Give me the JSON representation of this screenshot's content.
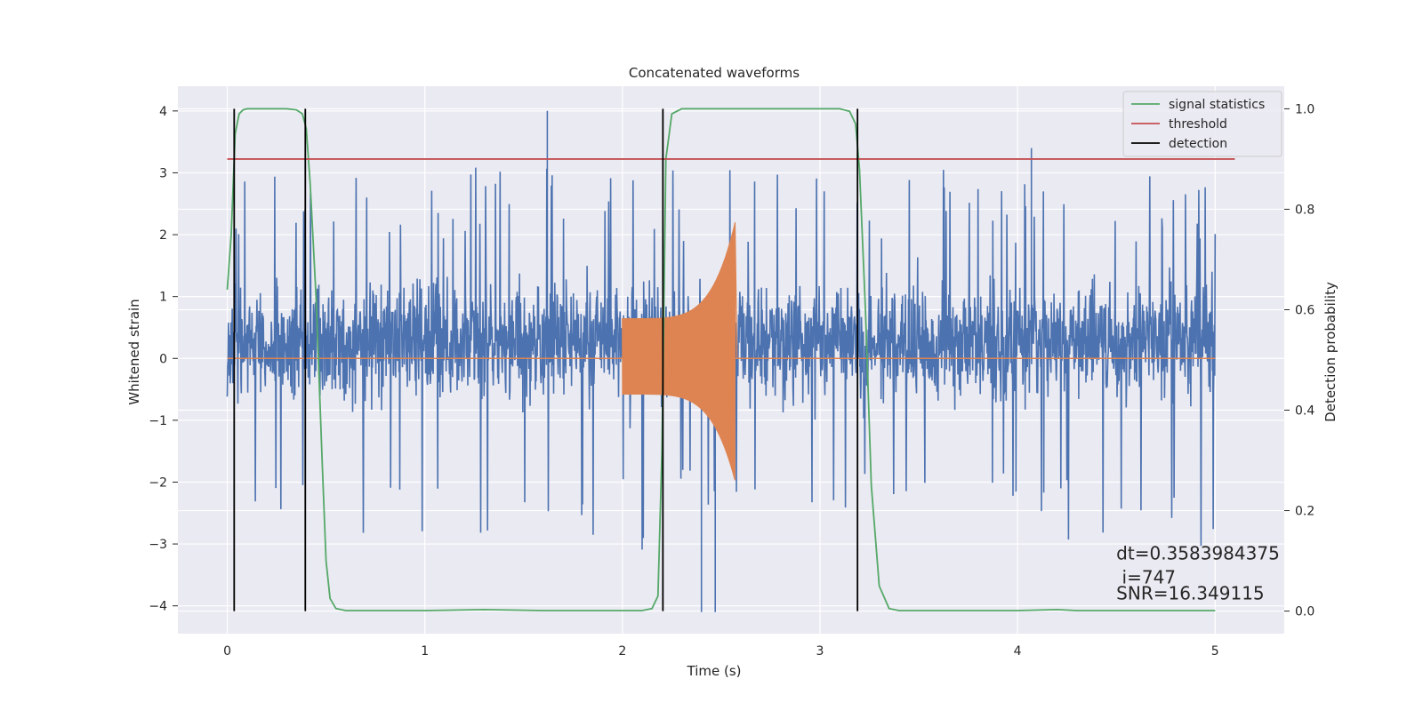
{
  "chart_data": {
    "type": "line",
    "title": "Concatenated waveforms",
    "xlabel": "Time (s)",
    "ylabel": "Whitened strain",
    "y2label": "Detection probability",
    "xlim": [
      -0.25,
      5.35
    ],
    "ylim": [
      -4.45,
      4.4
    ],
    "y2lim": [
      -0.045,
      1.045
    ],
    "xticks": [
      0,
      1,
      2,
      3,
      4,
      5
    ],
    "yticks": [
      -4,
      -3,
      -2,
      -1,
      0,
      1,
      2,
      3,
      4
    ],
    "y2ticks": [
      0.0,
      0.2,
      0.4,
      0.6,
      0.8,
      1.0
    ],
    "xtick_labels": [
      "0",
      "1",
      "2",
      "3",
      "4",
      "5"
    ],
    "ytick_labels": [
      "−4",
      "−3",
      "−2",
      "−1",
      "0",
      "1",
      "2",
      "3",
      "4"
    ],
    "y2tick_labels": [
      "0.0",
      "0.2",
      "0.4",
      "0.6",
      "0.8",
      "1.0"
    ],
    "grid": true,
    "legend_position": "top-right",
    "legend": [
      "signal statistics",
      "threshold",
      "detection"
    ],
    "colors": {
      "whitened_strain": "#4c72b0",
      "injected_waveform": "#dd8452",
      "signal_statistics": "#55a868",
      "threshold": "#c44e52",
      "detection": "#000000",
      "background": "#eaeaf2"
    },
    "series": [
      {
        "name": "signal statistics",
        "axis": "right",
        "x": [
          0,
          0.02,
          0.04,
          0.06,
          0.08,
          0.1,
          0.15,
          0.2,
          0.3,
          0.35,
          0.38,
          0.4,
          0.42,
          0.45,
          0.48,
          0.5,
          0.52,
          0.55,
          0.6,
          1.0,
          1.3,
          1.6,
          2.0,
          2.1,
          2.15,
          2.18,
          2.2,
          2.22,
          2.25,
          2.3,
          2.4,
          2.6,
          3.0,
          3.1,
          3.15,
          3.18,
          3.2,
          3.23,
          3.26,
          3.3,
          3.35,
          3.4,
          4.0,
          4.2,
          4.3,
          5.0
        ],
        "values": [
          0.64,
          0.75,
          0.95,
          0.99,
          0.998,
          1.0,
          1.0,
          1.0,
          1.0,
          0.998,
          0.99,
          0.96,
          0.85,
          0.62,
          0.3,
          0.1,
          0.025,
          0.005,
          0.001,
          0.001,
          0.003,
          0.001,
          0.001,
          0.001,
          0.005,
          0.03,
          0.32,
          0.9,
          0.99,
          1.0,
          1.0,
          1.0,
          1.0,
          1.0,
          0.995,
          0.97,
          0.88,
          0.6,
          0.25,
          0.05,
          0.005,
          0.001,
          0.001,
          0.003,
          0.001,
          0.001
        ]
      },
      {
        "name": "threshold",
        "axis": "right",
        "x": [
          0,
          5.1
        ],
        "values": [
          0.9,
          0.9
        ]
      }
    ],
    "detections": [
      0.035,
      0.395,
      2.205,
      3.19
    ],
    "strain": {
      "x_range": [
        0,
        5
      ],
      "typical_range": [
        -1.5,
        2.5
      ],
      "max": 4.0,
      "min": -4.1
    },
    "injection": {
      "x_range": [
        2.0,
        2.58
      ],
      "start_amplitude": 0.65,
      "peak_amplitude": 2.2,
      "peak_time": 2.57
    },
    "annotations": [
      {
        "text": "dt=0.3583984375",
        "x": 4.5,
        "y": -3.25
      },
      {
        "text": " i=747",
        "x": 4.5,
        "y": -3.64
      },
      {
        "text": "SNR=16.349115",
        "x": 4.5,
        "y": -3.9
      }
    ]
  }
}
